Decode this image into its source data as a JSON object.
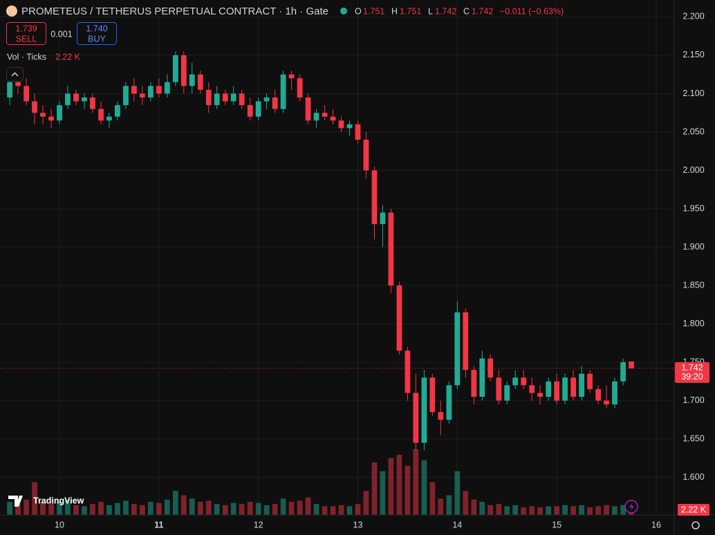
{
  "header": {
    "ohlc_labels": [
      "O",
      "H",
      "L",
      "C"
    ],
    "ohlc_values": [
      "1.751",
      "1.751",
      "1.742",
      "1.742"
    ],
    "change": "−0.011 (−0.63%)",
    "sell_price": "1.739",
    "sell": "SELL",
    "spread": "0.001",
    "buy_price": "1.740",
    "buy": "BUY",
    "indicator": "Vol · Ticks",
    "indicator_value": "2.22 K",
    "brand": "TradingView"
  },
  "chart_data": {
    "type": "candlestick",
    "title": "PROMETEUS / TETHERUS PERPETUAL CONTRACT · 1h · Gate",
    "x": [
      9.5,
      9.583,
      9.667,
      9.75,
      9.833,
      9.917,
      10,
      10.083,
      10.167,
      10.25,
      10.333,
      10.417,
      10.5,
      10.583,
      10.667,
      10.75,
      10.833,
      10.917,
      11,
      11.083,
      11.167,
      11.25,
      11.333,
      11.417,
      11.5,
      11.583,
      11.667,
      11.75,
      11.833,
      11.917,
      12,
      12.083,
      12.167,
      12.25,
      12.333,
      12.417,
      12.5,
      12.583,
      12.667,
      12.75,
      12.833,
      12.917,
      13,
      13.083,
      13.167,
      13.25,
      13.333,
      13.417,
      13.5,
      13.583,
      13.667,
      13.75,
      13.833,
      13.917,
      14,
      14.083,
      14.167,
      14.25,
      14.333,
      14.417,
      14.5,
      14.583,
      14.667,
      14.75,
      14.833,
      14.917,
      15,
      15.083,
      15.167,
      15.25,
      15.333,
      15.417,
      15.5,
      15.583,
      15.667,
      15.75
    ],
    "open": [
      2.095,
      2.115,
      2.11,
      2.09,
      2.075,
      2.07,
      2.065,
      2.085,
      2.1,
      2.09,
      2.095,
      2.08,
      2.065,
      2.07,
      2.085,
      2.11,
      2.1,
      2.095,
      2.11,
      2.1,
      2.115,
      2.15,
      2.11,
      2.125,
      2.105,
      2.085,
      2.1,
      2.09,
      2.1,
      2.085,
      2.07,
      2.09,
      2.095,
      2.08,
      2.125,
      2.12,
      2.095,
      2.065,
      2.075,
      2.07,
      2.065,
      2.055,
      2.06,
      2.04,
      2.0,
      1.93,
      1.945,
      1.85,
      1.765,
      1.71,
      1.645,
      1.73,
      1.685,
      1.675,
      1.72,
      1.815,
      1.74,
      1.705,
      1.755,
      1.73,
      1.7,
      1.72,
      1.73,
      1.72,
      1.71,
      1.705,
      1.725,
      1.7,
      1.73,
      1.705,
      1.735,
      1.715,
      1.7,
      1.695,
      1.725,
      1.751
    ],
    "high": [
      2.125,
      2.13,
      2.12,
      2.1,
      2.085,
      2.08,
      2.09,
      2.11,
      2.105,
      2.1,
      2.1,
      2.09,
      2.075,
      2.09,
      2.115,
      2.12,
      2.11,
      2.115,
      2.12,
      2.125,
      2.155,
      2.155,
      2.14,
      2.13,
      2.115,
      2.11,
      2.105,
      2.11,
      2.105,
      2.095,
      2.095,
      2.1,
      2.105,
      2.13,
      2.13,
      2.125,
      2.1,
      2.08,
      2.085,
      2.08,
      2.07,
      2.065,
      2.065,
      2.05,
      2.005,
      1.955,
      1.95,
      1.855,
      1.77,
      1.735,
      1.74,
      1.735,
      1.7,
      1.725,
      1.83,
      1.82,
      1.745,
      1.765,
      1.76,
      1.74,
      1.725,
      1.74,
      1.74,
      1.73,
      1.72,
      1.73,
      1.735,
      1.735,
      1.74,
      1.745,
      1.74,
      1.72,
      1.72,
      1.73,
      1.755,
      1.751
    ],
    "low": [
      2.085,
      2.1,
      2.085,
      2.06,
      2.06,
      2.055,
      2.06,
      2.08,
      2.085,
      2.08,
      2.075,
      2.06,
      2.055,
      2.065,
      2.08,
      2.09,
      2.085,
      2.09,
      2.095,
      2.095,
      2.11,
      2.1,
      2.1,
      2.1,
      2.075,
      2.08,
      2.085,
      2.085,
      2.08,
      2.065,
      2.065,
      2.08,
      2.075,
      2.075,
      2.105,
      2.09,
      2.06,
      2.055,
      2.065,
      2.06,
      2.05,
      2.045,
      2.035,
      1.99,
      1.91,
      1.9,
      1.84,
      1.76,
      1.7,
      1.635,
      1.635,
      1.68,
      1.655,
      1.67,
      1.715,
      1.73,
      1.695,
      1.7,
      1.725,
      1.695,
      1.695,
      1.715,
      1.715,
      1.7,
      1.695,
      1.7,
      1.695,
      1.695,
      1.7,
      1.7,
      1.71,
      1.695,
      1.69,
      1.69,
      1.72,
      1.742
    ],
    "close": [
      2.115,
      2.11,
      2.09,
      2.075,
      2.07,
      2.065,
      2.085,
      2.1,
      2.09,
      2.095,
      2.08,
      2.065,
      2.07,
      2.085,
      2.11,
      2.1,
      2.095,
      2.11,
      2.1,
      2.115,
      2.15,
      2.11,
      2.125,
      2.105,
      2.085,
      2.1,
      2.09,
      2.1,
      2.085,
      2.07,
      2.09,
      2.095,
      2.08,
      2.125,
      2.12,
      2.095,
      2.065,
      2.075,
      2.07,
      2.065,
      2.055,
      2.06,
      2.04,
      2.0,
      1.93,
      1.945,
      1.85,
      1.765,
      1.71,
      1.645,
      1.73,
      1.685,
      1.675,
      1.72,
      1.815,
      1.74,
      1.705,
      1.755,
      1.73,
      1.7,
      1.72,
      1.73,
      1.72,
      1.71,
      1.705,
      1.725,
      1.7,
      1.73,
      1.705,
      1.735,
      1.715,
      1.7,
      1.695,
      1.725,
      1.75,
      1.742
    ],
    "volume": [
      12,
      10,
      14,
      30,
      12,
      10,
      12,
      14,
      9,
      8,
      10,
      12,
      9,
      11,
      13,
      10,
      9,
      12,
      11,
      14,
      22,
      18,
      15,
      12,
      13,
      10,
      9,
      11,
      10,
      12,
      11,
      9,
      10,
      15,
      12,
      13,
      16,
      10,
      8,
      8,
      9,
      8,
      10,
      22,
      48,
      40,
      52,
      55,
      45,
      60,
      50,
      30,
      15,
      18,
      40,
      22,
      14,
      12,
      9,
      10,
      8,
      9,
      7,
      8,
      7,
      8,
      8,
      9,
      8,
      9,
      7,
      8,
      9,
      8,
      9,
      2.22
    ],
    "up_color": "#22ab94",
    "down_color": "#f23645",
    "xlim": [
      9.402,
      16.181
    ],
    "xticks": [
      10,
      11,
      12,
      13,
      14,
      15,
      16
    ],
    "ylim": [
      1.551,
      2.222
    ],
    "yticks": [
      {
        "value": 2.2,
        "label": "2.200"
      },
      {
        "value": 2.15,
        "label": "2.150"
      },
      {
        "value": 2.1,
        "label": "2.100"
      },
      {
        "value": 2.05,
        "label": "2.050"
      },
      {
        "value": 2.0,
        "label": "2.000"
      },
      {
        "value": 1.95,
        "label": "1.950"
      },
      {
        "value": 1.9,
        "label": "1.900"
      },
      {
        "value": 1.85,
        "label": "1.850"
      },
      {
        "value": 1.8,
        "label": "1.800"
      },
      {
        "value": 1.75,
        "label": "1.750"
      },
      {
        "value": 1.7,
        "label": "1.700"
      },
      {
        "value": 1.65,
        "label": "1.650"
      },
      {
        "value": 1.6,
        "label": "1.600"
      }
    ],
    "grid": true,
    "last_price_label": "1.742",
    "countdown": "39:20",
    "volume_label": "2.22 K"
  }
}
